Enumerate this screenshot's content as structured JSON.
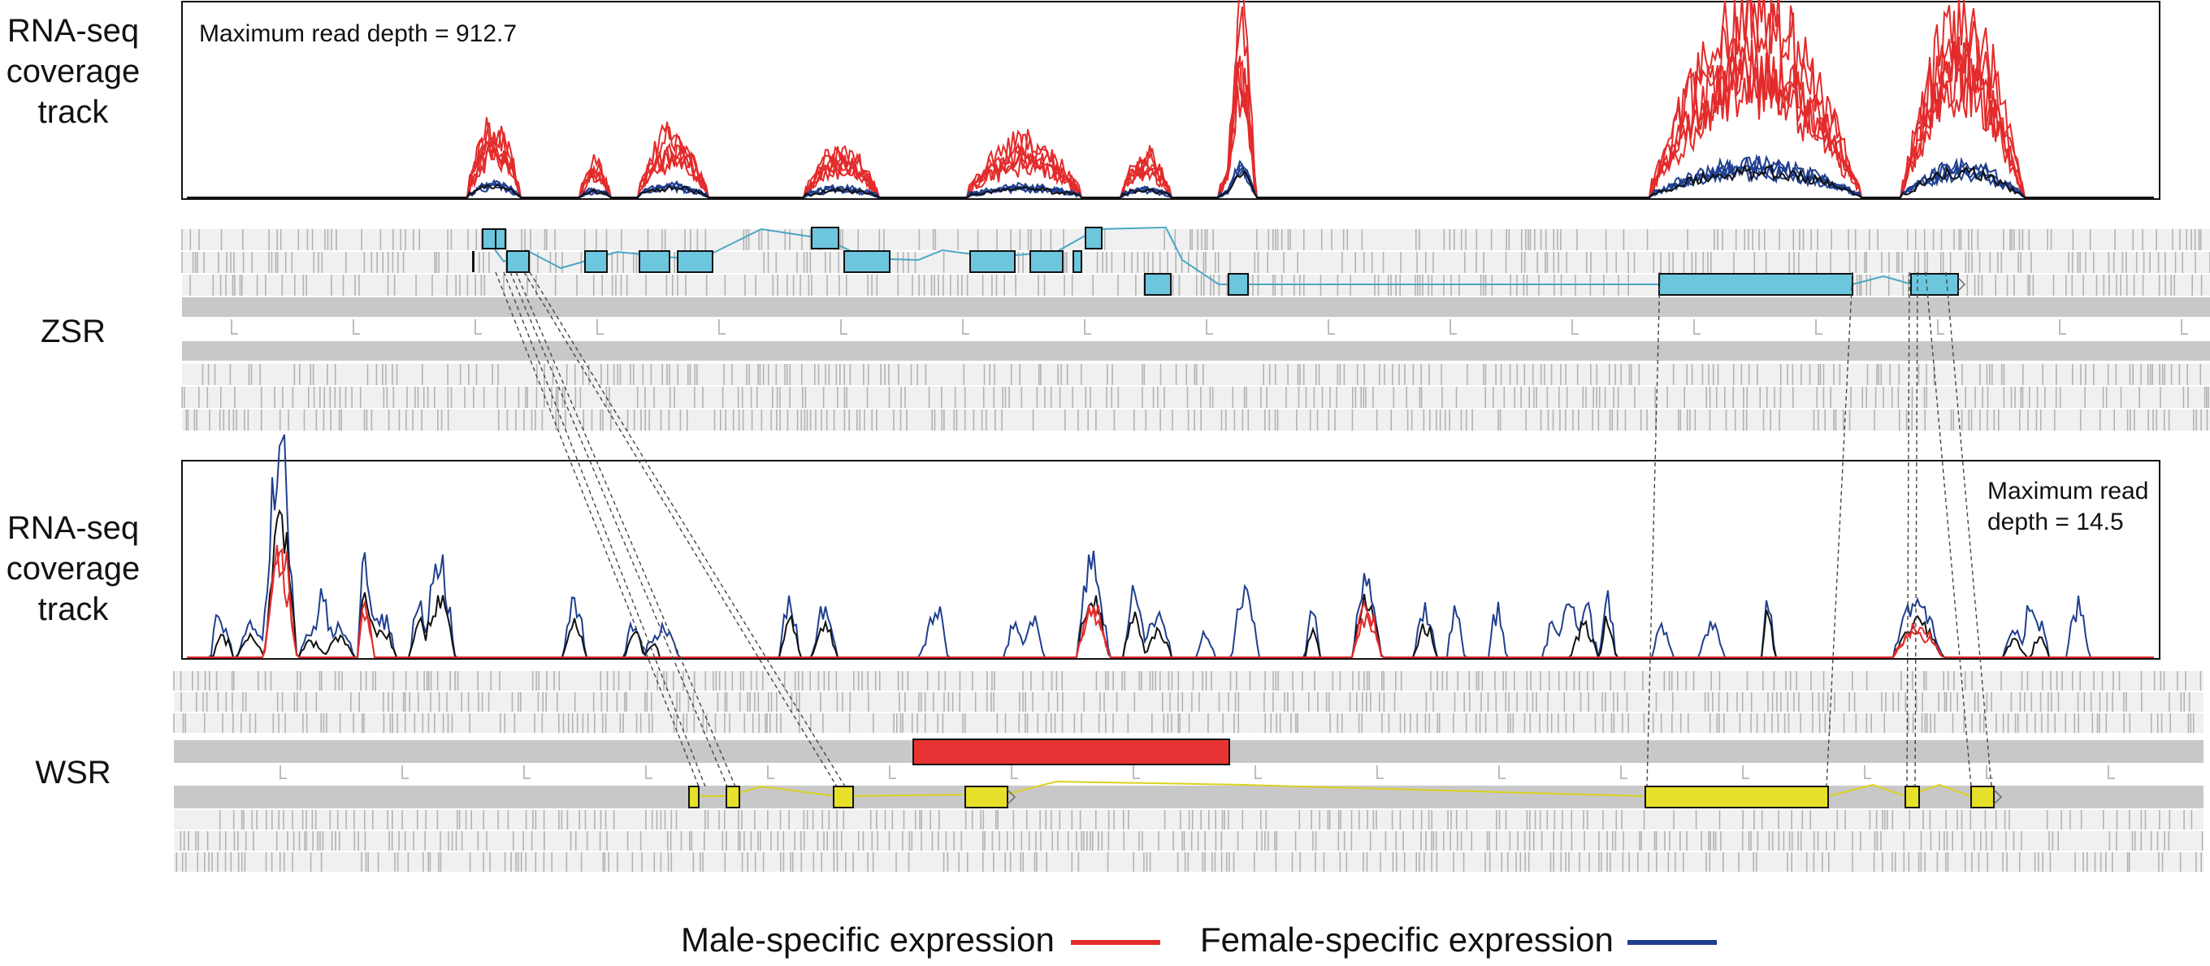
{
  "labels": {
    "coverage_top": [
      "RNA-seq",
      "coverage",
      "track"
    ],
    "zsr": "ZSR",
    "coverage_bottom": [
      "RNA-seq",
      "coverage",
      "track"
    ],
    "wsr": "WSR"
  },
  "annotations": {
    "max_depth_top": "Maximum read depth = 912.7",
    "max_depth_bottom_line1": "Maximum read",
    "max_depth_bottom_line2": "depth = 14.5"
  },
  "legend": {
    "male": "Male-specific expression",
    "female": "Female-specific expression"
  },
  "colors": {
    "male": "#e32b2b",
    "female": "#1f3f8f",
    "mixed": "#111111",
    "zsr_exon": "#6cc6dd",
    "zsr_intron": "#4aa7c4",
    "wsr_exon": "#e6e02a",
    "wsr_intron": "#d8d21e",
    "highlight_block": "#e63232",
    "track_bg": "#c8c8c8",
    "stripe_bg": "#f0f0f0",
    "stripe": "#a9a9a9"
  },
  "icons": {
    "connector": "dashed-homology-line"
  }
}
